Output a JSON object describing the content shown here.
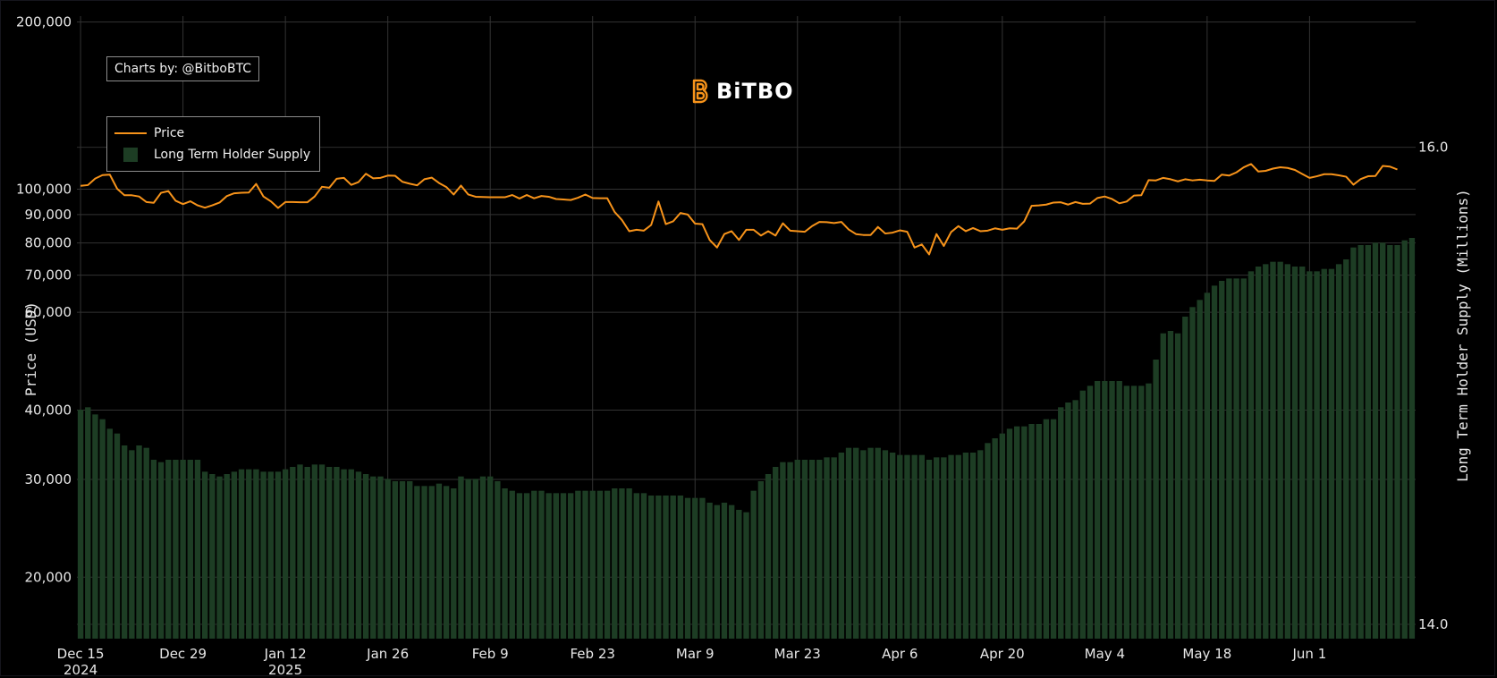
{
  "brand": {
    "name": "BiTBO",
    "color": "#f7931a"
  },
  "credit": "Charts by: @BitboBTC",
  "legend": [
    {
      "label": "Price",
      "kind": "line",
      "color": "#f7931a"
    },
    {
      "label": "Long Term Holder Supply",
      "kind": "bar",
      "color": "#1d3d24"
    }
  ],
  "chart_data": {
    "type": "bar",
    "subtype": "bar-with-line-overlay",
    "title": "",
    "xlabel": "",
    "ylabel": "Price (USD)",
    "ylabel_right": "Long Term Holder Supply (Millions)",
    "yscale": "log",
    "ylim": [
      15500,
      205000
    ],
    "y2lim": [
      13.94,
      16.55
    ],
    "y_ticks": [
      20000,
      30000,
      40000,
      60000,
      70000,
      80000,
      90000,
      100000,
      200000
    ],
    "y_tick_labels": [
      "20,000",
      "30,000",
      "40,000",
      "60,000",
      "70,000",
      "80,000",
      "90,000",
      "100,000",
      "200,000"
    ],
    "y2_ticks": [
      14.0,
      16.0
    ],
    "y2_tick_labels": [
      "14.0",
      "16.0"
    ],
    "x_start": "2024-12-15",
    "x_end": "2025-06-11",
    "x_ticks": [
      {
        "date": "2024-12-15",
        "label": "Dec 15",
        "sub": "2024"
      },
      {
        "date": "2024-12-29",
        "label": "Dec 29",
        "sub": ""
      },
      {
        "date": "2025-01-12",
        "label": "Jan 12",
        "sub": "2025"
      },
      {
        "date": "2025-01-26",
        "label": "Jan 26",
        "sub": ""
      },
      {
        "date": "2025-02-09",
        "label": "Feb 9",
        "sub": ""
      },
      {
        "date": "2025-02-23",
        "label": "Feb 23",
        "sub": ""
      },
      {
        "date": "2025-03-09",
        "label": "Mar 9",
        "sub": ""
      },
      {
        "date": "2025-03-23",
        "label": "Mar 23",
        "sub": ""
      },
      {
        "date": "2025-04-06",
        "label": "Apr 6",
        "sub": ""
      },
      {
        "date": "2025-04-20",
        "label": "Apr 20",
        "sub": ""
      },
      {
        "date": "2025-05-04",
        "label": "May 4",
        "sub": ""
      },
      {
        "date": "2025-05-18",
        "label": "May 18",
        "sub": ""
      },
      {
        "date": "2025-06-01",
        "label": "Jun 1",
        "sub": ""
      }
    ],
    "grid": true,
    "legend_position": "top-left",
    "series": [
      {
        "name": "Price",
        "type": "line",
        "axis": "left",
        "color": "#f7931a",
        "values": [
          101400,
          101700,
          104500,
          106000,
          106200,
          100200,
          97500,
          97500,
          97000,
          94800,
          94500,
          98500,
          99200,
          95300,
          94000,
          95100,
          93500,
          92600,
          93500,
          94600,
          97200,
          98300,
          98500,
          98600,
          102200,
          97000,
          95100,
          92500,
          94800,
          94800,
          94700,
          94700,
          97000,
          101000,
          100600,
          104400,
          104800,
          101800,
          103000,
          106600,
          104600,
          104800,
          105800,
          105700,
          103100,
          102300,
          101600,
          104200,
          104900,
          102600,
          100900,
          97800,
          101500,
          97800,
          96900,
          96800,
          96700,
          96700,
          96700,
          97600,
          96200,
          97600,
          96300,
          97200,
          96900,
          96000,
          95800,
          95600,
          96500,
          97800,
          96400,
          96300,
          96300,
          91000,
          88000,
          84000,
          84500,
          84200,
          86200,
          95000,
          86500,
          87500,
          90600,
          90000,
          86700,
          86500,
          81000,
          78500,
          83000,
          84000,
          81000,
          84500,
          84500,
          82500,
          84000,
          82500,
          86800,
          84200,
          84000,
          83800,
          85800,
          87300,
          87200,
          86900,
          87300,
          84600,
          83000,
          82700,
          82700,
          85500,
          83200,
          83500,
          84300,
          83800,
          78500,
          79500,
          76300,
          83000,
          79000,
          83700,
          85800,
          84000,
          85100,
          84000,
          84200,
          85000,
          84500,
          85000,
          84900,
          87500,
          93300,
          93500,
          93800,
          94600,
          94700,
          93800,
          94800,
          94100,
          94200,
          96400,
          97000,
          96000,
          94300,
          95000,
          97400,
          97500,
          103800,
          103700,
          104800,
          104200,
          103300,
          104200,
          103700,
          104000,
          103700,
          103500,
          106200,
          105800,
          107200,
          109500,
          111000,
          107600,
          107900,
          108900,
          109500,
          109200,
          108300,
          106500,
          104800,
          105500,
          106400,
          106400,
          105900,
          105300,
          101900,
          104300,
          105500,
          105600,
          110100,
          109800,
          108500
        ]
      },
      {
        "name": "Long Term Holder Supply",
        "type": "bar",
        "axis": "right",
        "color": "#1d3d24",
        "values": [
          14.9,
          14.91,
          14.88,
          14.86,
          14.82,
          14.8,
          14.75,
          14.73,
          14.75,
          14.74,
          14.69,
          14.68,
          14.69,
          14.69,
          14.69,
          14.69,
          14.69,
          14.64,
          14.63,
          14.62,
          14.63,
          14.64,
          14.65,
          14.65,
          14.65,
          14.64,
          14.64,
          14.64,
          14.65,
          14.66,
          14.67,
          14.66,
          14.67,
          14.67,
          14.66,
          14.66,
          14.65,
          14.65,
          14.64,
          14.63,
          14.62,
          14.62,
          14.61,
          14.6,
          14.6,
          14.6,
          14.58,
          14.58,
          14.58,
          14.59,
          14.58,
          14.57,
          14.62,
          14.61,
          14.61,
          14.62,
          14.62,
          14.6,
          14.57,
          14.56,
          14.55,
          14.55,
          14.56,
          14.56,
          14.55,
          14.55,
          14.55,
          14.55,
          14.56,
          14.56,
          14.56,
          14.56,
          14.56,
          14.57,
          14.57,
          14.57,
          14.55,
          14.55,
          14.54,
          14.54,
          14.54,
          14.54,
          14.54,
          14.53,
          14.53,
          14.53,
          14.51,
          14.5,
          14.51,
          14.5,
          14.48,
          14.47,
          14.56,
          14.6,
          14.63,
          14.66,
          14.68,
          14.68,
          14.69,
          14.69,
          14.69,
          14.69,
          14.7,
          14.7,
          14.72,
          14.74,
          14.74,
          14.73,
          14.74,
          14.74,
          14.73,
          14.72,
          14.71,
          14.71,
          14.71,
          14.71,
          14.69,
          14.7,
          14.7,
          14.71,
          14.71,
          14.72,
          14.72,
          14.73,
          14.76,
          14.78,
          14.8,
          14.82,
          14.83,
          14.83,
          14.84,
          14.84,
          14.86,
          14.86,
          14.91,
          14.93,
          14.94,
          14.98,
          15.0,
          15.02,
          15.02,
          15.02,
          15.02,
          15.0,
          15.0,
          15.0,
          15.01,
          15.11,
          15.22,
          15.23,
          15.22,
          15.29,
          15.33,
          15.36,
          15.39,
          15.42,
          15.44,
          15.45,
          15.45,
          15.45,
          15.48,
          15.5,
          15.51,
          15.52,
          15.52,
          15.51,
          15.5,
          15.5,
          15.48,
          15.48,
          15.49,
          15.49,
          15.51,
          15.53,
          15.58,
          15.59,
          15.59,
          15.6,
          15.6,
          15.59,
          15.59,
          15.61,
          15.62
        ]
      }
    ]
  }
}
